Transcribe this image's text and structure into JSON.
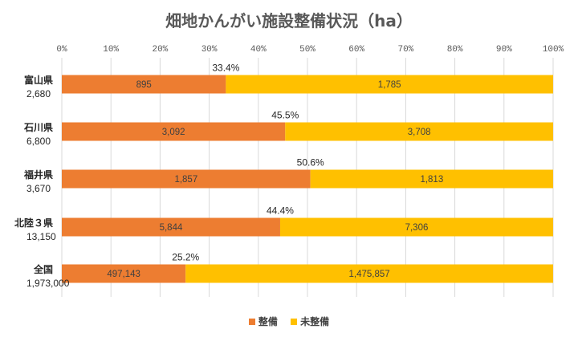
{
  "chart_data": {
    "type": "bar",
    "orientation": "horizontal",
    "stacked": "percent",
    "title": "畑地かんがい施設整備状況（ha）",
    "x_ticks": [
      "0%",
      "10%",
      "20%",
      "30%",
      "40%",
      "50%",
      "60%",
      "70%",
      "80%",
      "90%",
      "100%"
    ],
    "xlim": [
      0,
      100
    ],
    "legend_position": "bottom",
    "grid": true,
    "categories": [
      {
        "name": "富山県",
        "total": "2,680"
      },
      {
        "name": "石川県",
        "total": "6,800"
      },
      {
        "name": "福井県",
        "total": "3,670"
      },
      {
        "name": "北陸３県",
        "total": "13,150"
      },
      {
        "name": "全国",
        "total": "1,973,000"
      }
    ],
    "series": [
      {
        "name": "整備",
        "color": "#ED7D31",
        "values": [
          895,
          3092,
          1857,
          5844,
          497143
        ],
        "labels": [
          "895",
          "3,092",
          "1,857",
          "5,844",
          "497,143"
        ]
      },
      {
        "name": "未整備",
        "color": "#FFC000",
        "values": [
          1785,
          3708,
          1813,
          7306,
          1475857
        ],
        "labels": [
          "1,785",
          "3,708",
          "1,813",
          "7,306",
          "1,475,857"
        ]
      }
    ],
    "percent_labels": [
      "33.4%",
      "45.5%",
      "50.6%",
      "44.4%",
      "25.2%"
    ]
  }
}
